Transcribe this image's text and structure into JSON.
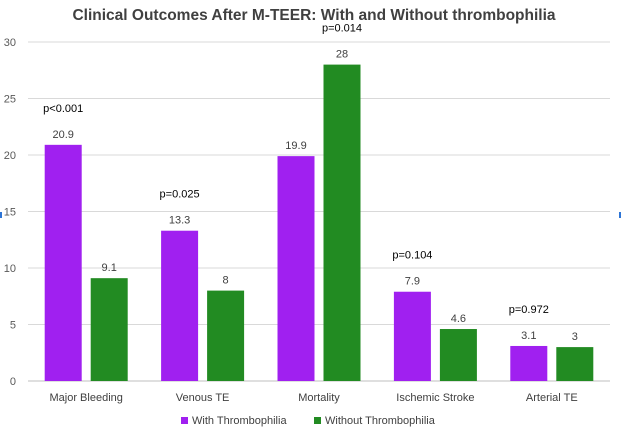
{
  "chart_data": {
    "type": "bar",
    "title": "Clinical Outcomes After M-TEER: With and Without thrombophilia",
    "categories": [
      "Major Bleeding",
      "Venous TE",
      "Mortality",
      "Ischemic Stroke",
      "Arterial TE"
    ],
    "series": [
      {
        "name": "With Thrombophilia",
        "color": "#a020f0",
        "values": [
          20.9,
          13.3,
          19.9,
          7.9,
          3.1
        ],
        "labels": [
          "20.9",
          "13.3",
          "19.9",
          "7.9",
          "3.1"
        ]
      },
      {
        "name": "Without Thrombophilia",
        "color": "#228b22",
        "values": [
          9.1,
          8,
          28,
          4.6,
          3
        ],
        "labels": [
          "9.1",
          "8",
          "28",
          "4.6",
          "3"
        ]
      }
    ],
    "p_values": [
      "p<0.001",
      "p=0.025",
      "p=0.014",
      "p=0.104",
      "p=0.972"
    ],
    "yticks": [
      "0",
      "5",
      "10",
      "15",
      "20",
      "25",
      "30"
    ],
    "ylim": [
      0,
      30
    ],
    "ystep": 5,
    "grid": true,
    "legend_position": "bottom-center",
    "xlabel": "",
    "ylabel": ""
  }
}
